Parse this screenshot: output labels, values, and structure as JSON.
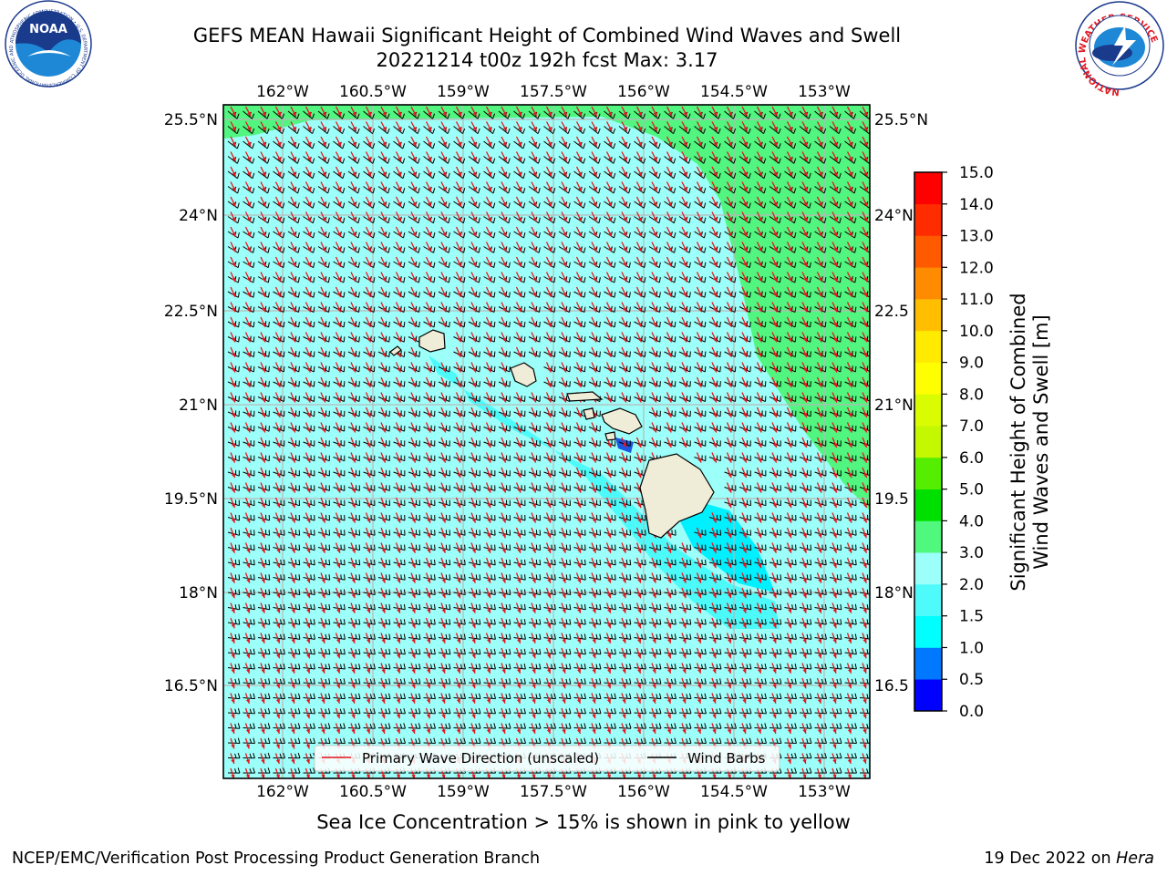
{
  "title": {
    "line1": "GEFS MEAN Hawaii Significant Height of Combined Wind Waves and Swell",
    "line2": "20221214 t00z 192h fcst   Max: 3.17"
  },
  "map": {
    "lon_labels": [
      "162°W",
      "160.5°W",
      "159°W",
      "157.5°W",
      "156°W",
      "154.5°W",
      "153°W"
    ],
    "lat_labels_left": [
      "25.5°N",
      "24°N",
      "22.5°N",
      "21°N",
      "19.5°N",
      "18°N",
      "16.5°N"
    ],
    "lat_labels_right": [
      "25.5°N",
      "24°N",
      "22.5",
      "21°N",
      "19.5",
      "18°N",
      "16.5"
    ],
    "legend": {
      "wave_direction": "Primary Wave Direction (unscaled)",
      "wind_barbs": "Wind Barbs"
    },
    "colors": {
      "ocean_light": "#9cfff9",
      "ocean_mid": "#4dfafa",
      "ocean_high": "#51f57f",
      "land": "#efecd8",
      "arrow": "#e8141e",
      "barb": "#000000"
    }
  },
  "colorbar": {
    "title_line1": "Significant Height of Combined",
    "title_line2": "Wind Waves and Swell [m]",
    "ticks": [
      "0.0",
      "0.5",
      "1.0",
      "1.5",
      "2.0",
      "3.0",
      "4.0",
      "5.0",
      "6.0",
      "7.0",
      "8.0",
      "9.0",
      "10.0",
      "11.0",
      "12.0",
      "13.0",
      "14.0",
      "15.0"
    ],
    "colors": [
      "#0000ff",
      "#0078ff",
      "#00ffff",
      "#4ffafa",
      "#9cfff9",
      "#50f97e",
      "#00e000",
      "#55ee00",
      "#c3f800",
      "#dafc00",
      "#ffff00",
      "#ffea00",
      "#ffbf00",
      "#ff8c00",
      "#ff5a00",
      "#ff2c00",
      "#ff0000"
    ]
  },
  "logos": {
    "noaa_text": "NOAA",
    "noaa_ring": "NATIONAL OCEANIC AND ATMOSPHERIC ADMINISTRATION • U.S. DEPARTMENT OF COMMERCE",
    "nws_ring": "NATIONAL WEATHER SERVICE"
  },
  "footer": {
    "caption": "Sea Ice Concentration > 15% is shown in pink to yellow",
    "left": "NCEP/EMC/Verification Post Processing Product Generation Branch",
    "right_prefix": "19 Dec 2022 on ",
    "right_host": "Hera"
  }
}
